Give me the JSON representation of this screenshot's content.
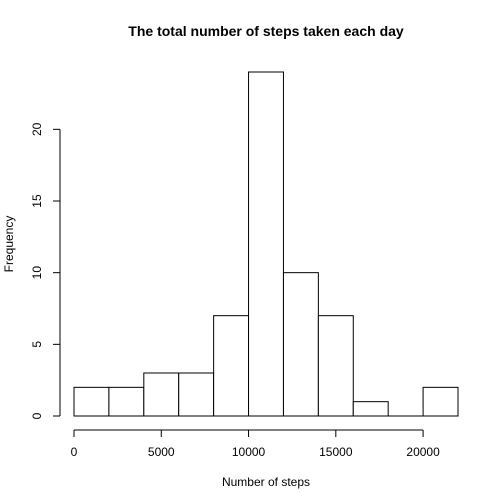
{
  "chart_data": {
    "type": "bar",
    "title": "The total number of steps taken each day",
    "xlabel": "Number of steps",
    "ylabel": "Frequency",
    "bins": [
      {
        "start": 0,
        "end": 2000,
        "count": 2
      },
      {
        "start": 2000,
        "end": 4000,
        "count": 2
      },
      {
        "start": 4000,
        "end": 6000,
        "count": 3
      },
      {
        "start": 6000,
        "end": 8000,
        "count": 3
      },
      {
        "start": 8000,
        "end": 10000,
        "count": 7
      },
      {
        "start": 10000,
        "end": 12000,
        "count": 24
      },
      {
        "start": 12000,
        "end": 14000,
        "count": 10
      },
      {
        "start": 14000,
        "end": 16000,
        "count": 7
      },
      {
        "start": 16000,
        "end": 18000,
        "count": 1
      },
      {
        "start": 18000,
        "end": 20000,
        "count": 0
      },
      {
        "start": 20000,
        "end": 22000,
        "count": 2
      }
    ],
    "xlim": [
      0,
      22000
    ],
    "ylim": [
      0,
      24
    ],
    "xticks": [
      0,
      5000,
      10000,
      15000,
      20000
    ],
    "yticks": [
      0,
      5,
      10,
      15,
      20
    ],
    "grid": false
  }
}
